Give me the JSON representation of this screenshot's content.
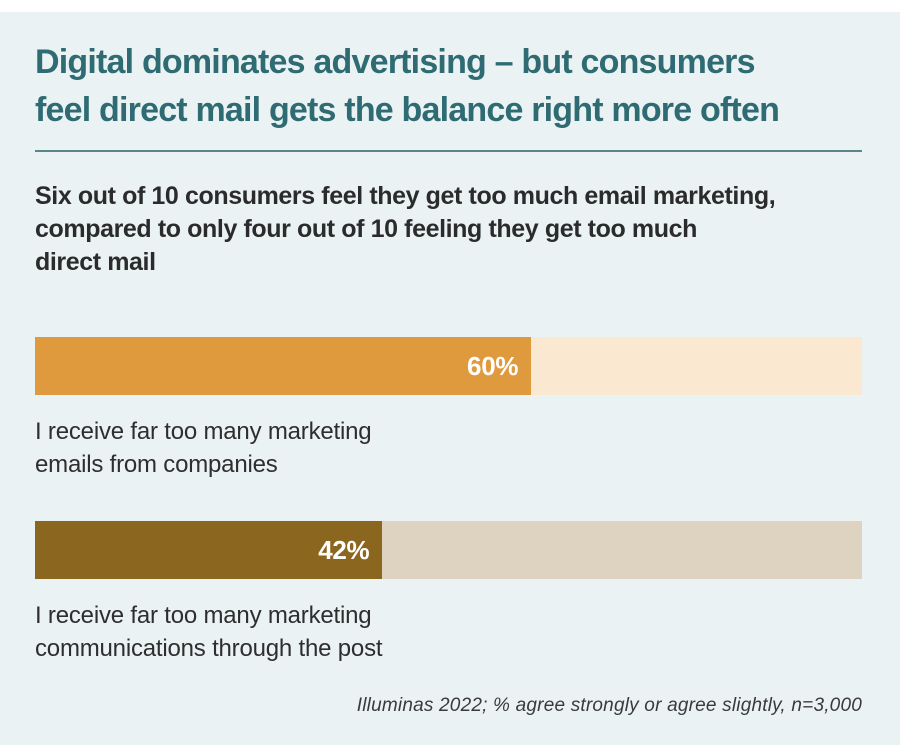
{
  "page": {
    "outer_background": "#FFFFFF",
    "panel_background": "#EAF2F4"
  },
  "header": {
    "title_lines": [
      "Digital dominates advertising – but consumers",
      "feel direct mail gets the balance right more often"
    ],
    "title_color": "#2F6B72",
    "divider_color": "#5A858C"
  },
  "subtitle": {
    "lines": [
      "Six out of 10 consumers feel they get too much email marketing,",
      "compared to only four out of 10 feeling they get too much",
      "direct mail"
    ],
    "text_color": "#2B2B2B"
  },
  "chart_data": {
    "type": "bar",
    "orientation": "horizontal",
    "categories": [
      "I receive far too many marketing emails from companies",
      "I receive far too many marketing communications through the post"
    ],
    "values": [
      60,
      42
    ],
    "value_labels": [
      "60%",
      "42%"
    ],
    "xlim": [
      0,
      100
    ],
    "grid": false,
    "legend": false,
    "bar_fill_colors": [
      "#E09A3E",
      "#8A661F"
    ],
    "bar_track_colors": [
      "#FAE8D0",
      "#DED3C1"
    ],
    "value_label_color": "#FFFFFF",
    "title": "Digital dominates advertising – but consumers feel direct mail gets the balance right more often",
    "subtitle": "Six out of 10 consumers feel they get too much email marketing, compared to only four out of 10 feeling they get too much direct mail",
    "source": "Illuminas 2022; % agree strongly or agree slightly, n=3,000"
  },
  "bars": [
    {
      "value": 60,
      "value_label": "60%",
      "fill_color": "#E09A3E",
      "track_color": "#FAE8D0",
      "label_lines": [
        "I receive far too many marketing",
        "emails from companies"
      ]
    },
    {
      "value": 42,
      "value_label": "42%",
      "fill_color": "#8A661F",
      "track_color": "#DED3C1",
      "label_lines": [
        "I receive far too many marketing",
        "communications through the post"
      ]
    }
  ],
  "footer": {
    "source_note": "Illuminas 2022; % agree strongly or agree slightly, n=3,000"
  }
}
